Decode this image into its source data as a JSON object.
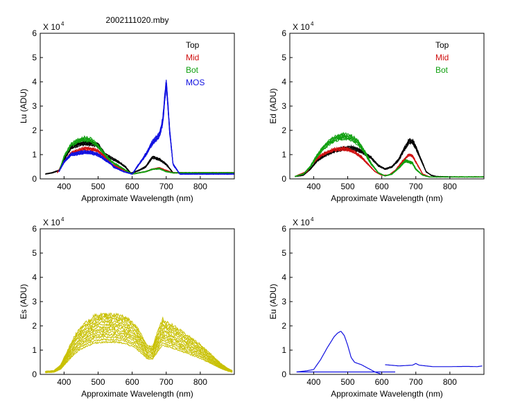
{
  "figure": {
    "title": "2002111020.mby"
  },
  "colors": {
    "black": "#000000",
    "red": "#d01010",
    "green": "#10a010",
    "blue": "#1010e0",
    "olive": "#c8c000"
  },
  "chart_data": [
    {
      "type": "line",
      "ylabel": "Lu (ADU)",
      "xlabel": "Approximate Wavelength (nm)",
      "y_exponent_base": "X 10",
      "y_exponent_power": "4",
      "xlim": [
        330,
        900
      ],
      "ylim": [
        0,
        6
      ],
      "xticks": [
        "400",
        "500",
        "600",
        "700",
        "800"
      ],
      "yticks": [
        "0",
        "1",
        "2",
        "3",
        "4",
        "5",
        "6"
      ],
      "legend": [
        {
          "label": "Top",
          "color": "#000000"
        },
        {
          "label": "Mid",
          "color": "#d01010"
        },
        {
          "label": "Bot",
          "color": "#10a010"
        },
        {
          "label": "MOS",
          "color": "#1010e0"
        }
      ],
      "series": [
        {
          "name": "Top",
          "color": "#000000",
          "copies": 6,
          "spread": 0.1,
          "x": [
            345,
            365,
            385,
            400,
            420,
            440,
            460,
            480,
            500,
            520,
            540,
            560,
            580,
            595,
            600,
            620,
            640,
            660,
            680,
            700,
            720,
            740,
            900
          ],
          "y": [
            0.2,
            0.25,
            0.35,
            0.8,
            1.3,
            1.42,
            1.48,
            1.45,
            1.38,
            1.0,
            0.85,
            0.7,
            0.5,
            0.25,
            0.25,
            0.35,
            0.5,
            0.9,
            0.8,
            0.6,
            0.25,
            0.25,
            0.25
          ]
        },
        {
          "name": "Mid",
          "color": "#d01010",
          "copies": 5,
          "spread": 0.08,
          "x": [
            380,
            400,
            420,
            440,
            460,
            480,
            500,
            520,
            540,
            600,
            620,
            640,
            660,
            680,
            700,
            720,
            740,
            900
          ],
          "y": [
            0.25,
            0.7,
            1.05,
            1.15,
            1.25,
            1.22,
            1.15,
            0.9,
            0.6,
            0.2,
            0.25,
            0.3,
            0.4,
            0.45,
            0.35,
            0.25,
            0.25,
            0.25
          ]
        },
        {
          "name": "Bot",
          "color": "#10a010",
          "copies": 5,
          "spread": 0.08,
          "x": [
            385,
            400,
            420,
            440,
            460,
            480,
            500,
            520,
            540,
            600,
            620,
            640,
            660,
            680,
            700,
            720,
            740,
            900
          ],
          "y": [
            0.3,
            0.9,
            1.4,
            1.55,
            1.65,
            1.6,
            1.35,
            1.0,
            0.7,
            0.2,
            0.25,
            0.3,
            0.4,
            0.42,
            0.3,
            0.25,
            0.25,
            0.25
          ]
        },
        {
          "name": "MOS",
          "color": "#1010e0",
          "copies": 7,
          "spread": 0.1,
          "x": [
            385,
            400,
            420,
            440,
            460,
            480,
            500,
            520,
            540,
            545,
            560,
            575,
            600,
            620,
            640,
            660,
            680,
            690,
            700,
            710,
            720,
            740,
            760,
            900
          ],
          "y": [
            0.3,
            0.7,
            1.0,
            1.05,
            1.1,
            1.08,
            1.0,
            0.8,
            0.6,
            0.5,
            0.4,
            0.3,
            0.2,
            0.6,
            1.0,
            1.5,
            1.8,
            2.4,
            4.0,
            2.0,
            0.6,
            0.2,
            0.2,
            0.2
          ]
        }
      ]
    },
    {
      "type": "line",
      "ylabel": "Ed (ADU)",
      "xlabel": "Approximate Wavelength (nm)",
      "y_exponent_base": "X 10",
      "y_exponent_power": "4",
      "xlim": [
        330,
        900
      ],
      "ylim": [
        0,
        6
      ],
      "xticks": [
        "400",
        "500",
        "600",
        "700",
        "800"
      ],
      "yticks": [
        "0",
        "1",
        "2",
        "3",
        "4",
        "5",
        "6"
      ],
      "legend": [
        {
          "label": "Top",
          "color": "#000000"
        },
        {
          "label": "Mid",
          "color": "#d01010"
        },
        {
          "label": "Bot",
          "color": "#10a010"
        }
      ],
      "series": [
        {
          "name": "Top",
          "color": "#000000",
          "copies": 6,
          "spread": 0.1,
          "x": [
            345,
            370,
            390,
            410,
            430,
            450,
            470,
            490,
            510,
            530,
            550,
            570,
            590,
            610,
            630,
            650,
            665,
            680,
            690,
            700,
            715,
            730,
            745,
            760,
            800,
            900
          ],
          "y": [
            0.1,
            0.15,
            0.4,
            0.75,
            0.95,
            1.1,
            1.2,
            1.25,
            1.28,
            1.2,
            1.05,
            0.85,
            0.55,
            0.4,
            0.5,
            0.8,
            1.2,
            1.55,
            1.55,
            1.3,
            0.8,
            0.3,
            0.15,
            0.1,
            0.08,
            0.08
          ]
        },
        {
          "name": "Mid",
          "color": "#d01010",
          "copies": 5,
          "spread": 0.08,
          "x": [
            345,
            380,
            400,
            420,
            440,
            460,
            480,
            500,
            520,
            540,
            560,
            580,
            600,
            620,
            640,
            660,
            680,
            690,
            700,
            720,
            740,
            900
          ],
          "y": [
            0.1,
            0.3,
            0.7,
            0.95,
            1.1,
            1.2,
            1.25,
            1.22,
            1.1,
            0.9,
            0.6,
            0.3,
            0.15,
            0.15,
            0.35,
            0.7,
            1.0,
            0.95,
            0.7,
            0.2,
            0.08,
            0.08
          ]
        },
        {
          "name": "Bot",
          "color": "#10a010",
          "copies": 7,
          "spread": 0.12,
          "x": [
            345,
            370,
            390,
            410,
            430,
            450,
            470,
            490,
            510,
            530,
            550,
            570,
            590,
            610,
            630,
            650,
            670,
            690,
            700,
            720,
            740,
            900
          ],
          "y": [
            0.1,
            0.2,
            0.5,
            0.95,
            1.3,
            1.55,
            1.7,
            1.75,
            1.7,
            1.5,
            1.1,
            0.6,
            0.25,
            0.12,
            0.2,
            0.45,
            0.75,
            0.65,
            0.4,
            0.15,
            0.08,
            0.08
          ]
        }
      ]
    },
    {
      "type": "line",
      "ylabel": "Es (ADU)",
      "xlabel": "Approximate Wavelength (nm)",
      "y_exponent_base": "X 10",
      "y_exponent_power": "4",
      "xlim": [
        330,
        900
      ],
      "ylim": [
        0,
        6
      ],
      "xticks": [
        "400",
        "500",
        "600",
        "700",
        "800"
      ],
      "yticks": [
        "0",
        "1",
        "2",
        "3",
        "4",
        "5",
        "6"
      ],
      "legend": [],
      "series": [
        {
          "name": "Es",
          "color": "#c8c000",
          "copies": 12,
          "spread": 0.6,
          "x": [
            345,
            370,
            390,
            410,
            430,
            450,
            470,
            490,
            510,
            530,
            550,
            570,
            590,
            610,
            630,
            645,
            660,
            680,
            690,
            700,
            720,
            740,
            760,
            780,
            800,
            820,
            840,
            860,
            880,
            895
          ],
          "y": [
            0.1,
            0.12,
            0.3,
            0.75,
            1.2,
            1.5,
            1.7,
            1.85,
            1.9,
            1.9,
            1.9,
            1.85,
            1.75,
            1.55,
            1.2,
            0.9,
            0.9,
            1.5,
            1.75,
            1.65,
            1.55,
            1.4,
            1.25,
            1.1,
            0.95,
            0.75,
            0.55,
            0.35,
            0.2,
            0.12
          ]
        }
      ]
    },
    {
      "type": "line",
      "ylabel": "Eu (ADU)",
      "xlabel": "Approximate Wavelength (nm)",
      "y_exponent_base": "X 10",
      "y_exponent_power": "4",
      "xlim": [
        330,
        900
      ],
      "ylim": [
        0,
        6
      ],
      "xticks": [
        "400",
        "500",
        "600",
        "700",
        "800"
      ],
      "yticks": [
        "0",
        "1",
        "2",
        "3",
        "4",
        "5",
        "6"
      ],
      "legend": [],
      "series": [
        {
          "name": "Eu",
          "color": "#1010e0",
          "copies": 1,
          "spread": 0,
          "x": [
            350,
            380,
            400,
            420,
            440,
            460,
            470,
            480,
            490,
            500,
            510,
            520,
            540,
            560,
            580,
            600
          ],
          "y": [
            0.1,
            0.15,
            0.2,
            0.6,
            1.1,
            1.55,
            1.7,
            1.78,
            1.6,
            1.2,
            0.7,
            0.5,
            0.4,
            0.25,
            0.1,
            0.0
          ]
        },
        {
          "name": "Eu-base",
          "color": "#1010e0",
          "copies": 1,
          "spread": 0,
          "x": [
            350,
            640
          ],
          "y": [
            0.1,
            0.1
          ]
        },
        {
          "name": "Eu-nir",
          "color": "#1010e0",
          "copies": 1,
          "spread": 0,
          "x": [
            610,
            650,
            690,
            700,
            710,
            750,
            800,
            850,
            880,
            895
          ],
          "y": [
            0.4,
            0.35,
            0.38,
            0.45,
            0.38,
            0.32,
            0.32,
            0.33,
            0.32,
            0.35
          ]
        }
      ]
    }
  ]
}
